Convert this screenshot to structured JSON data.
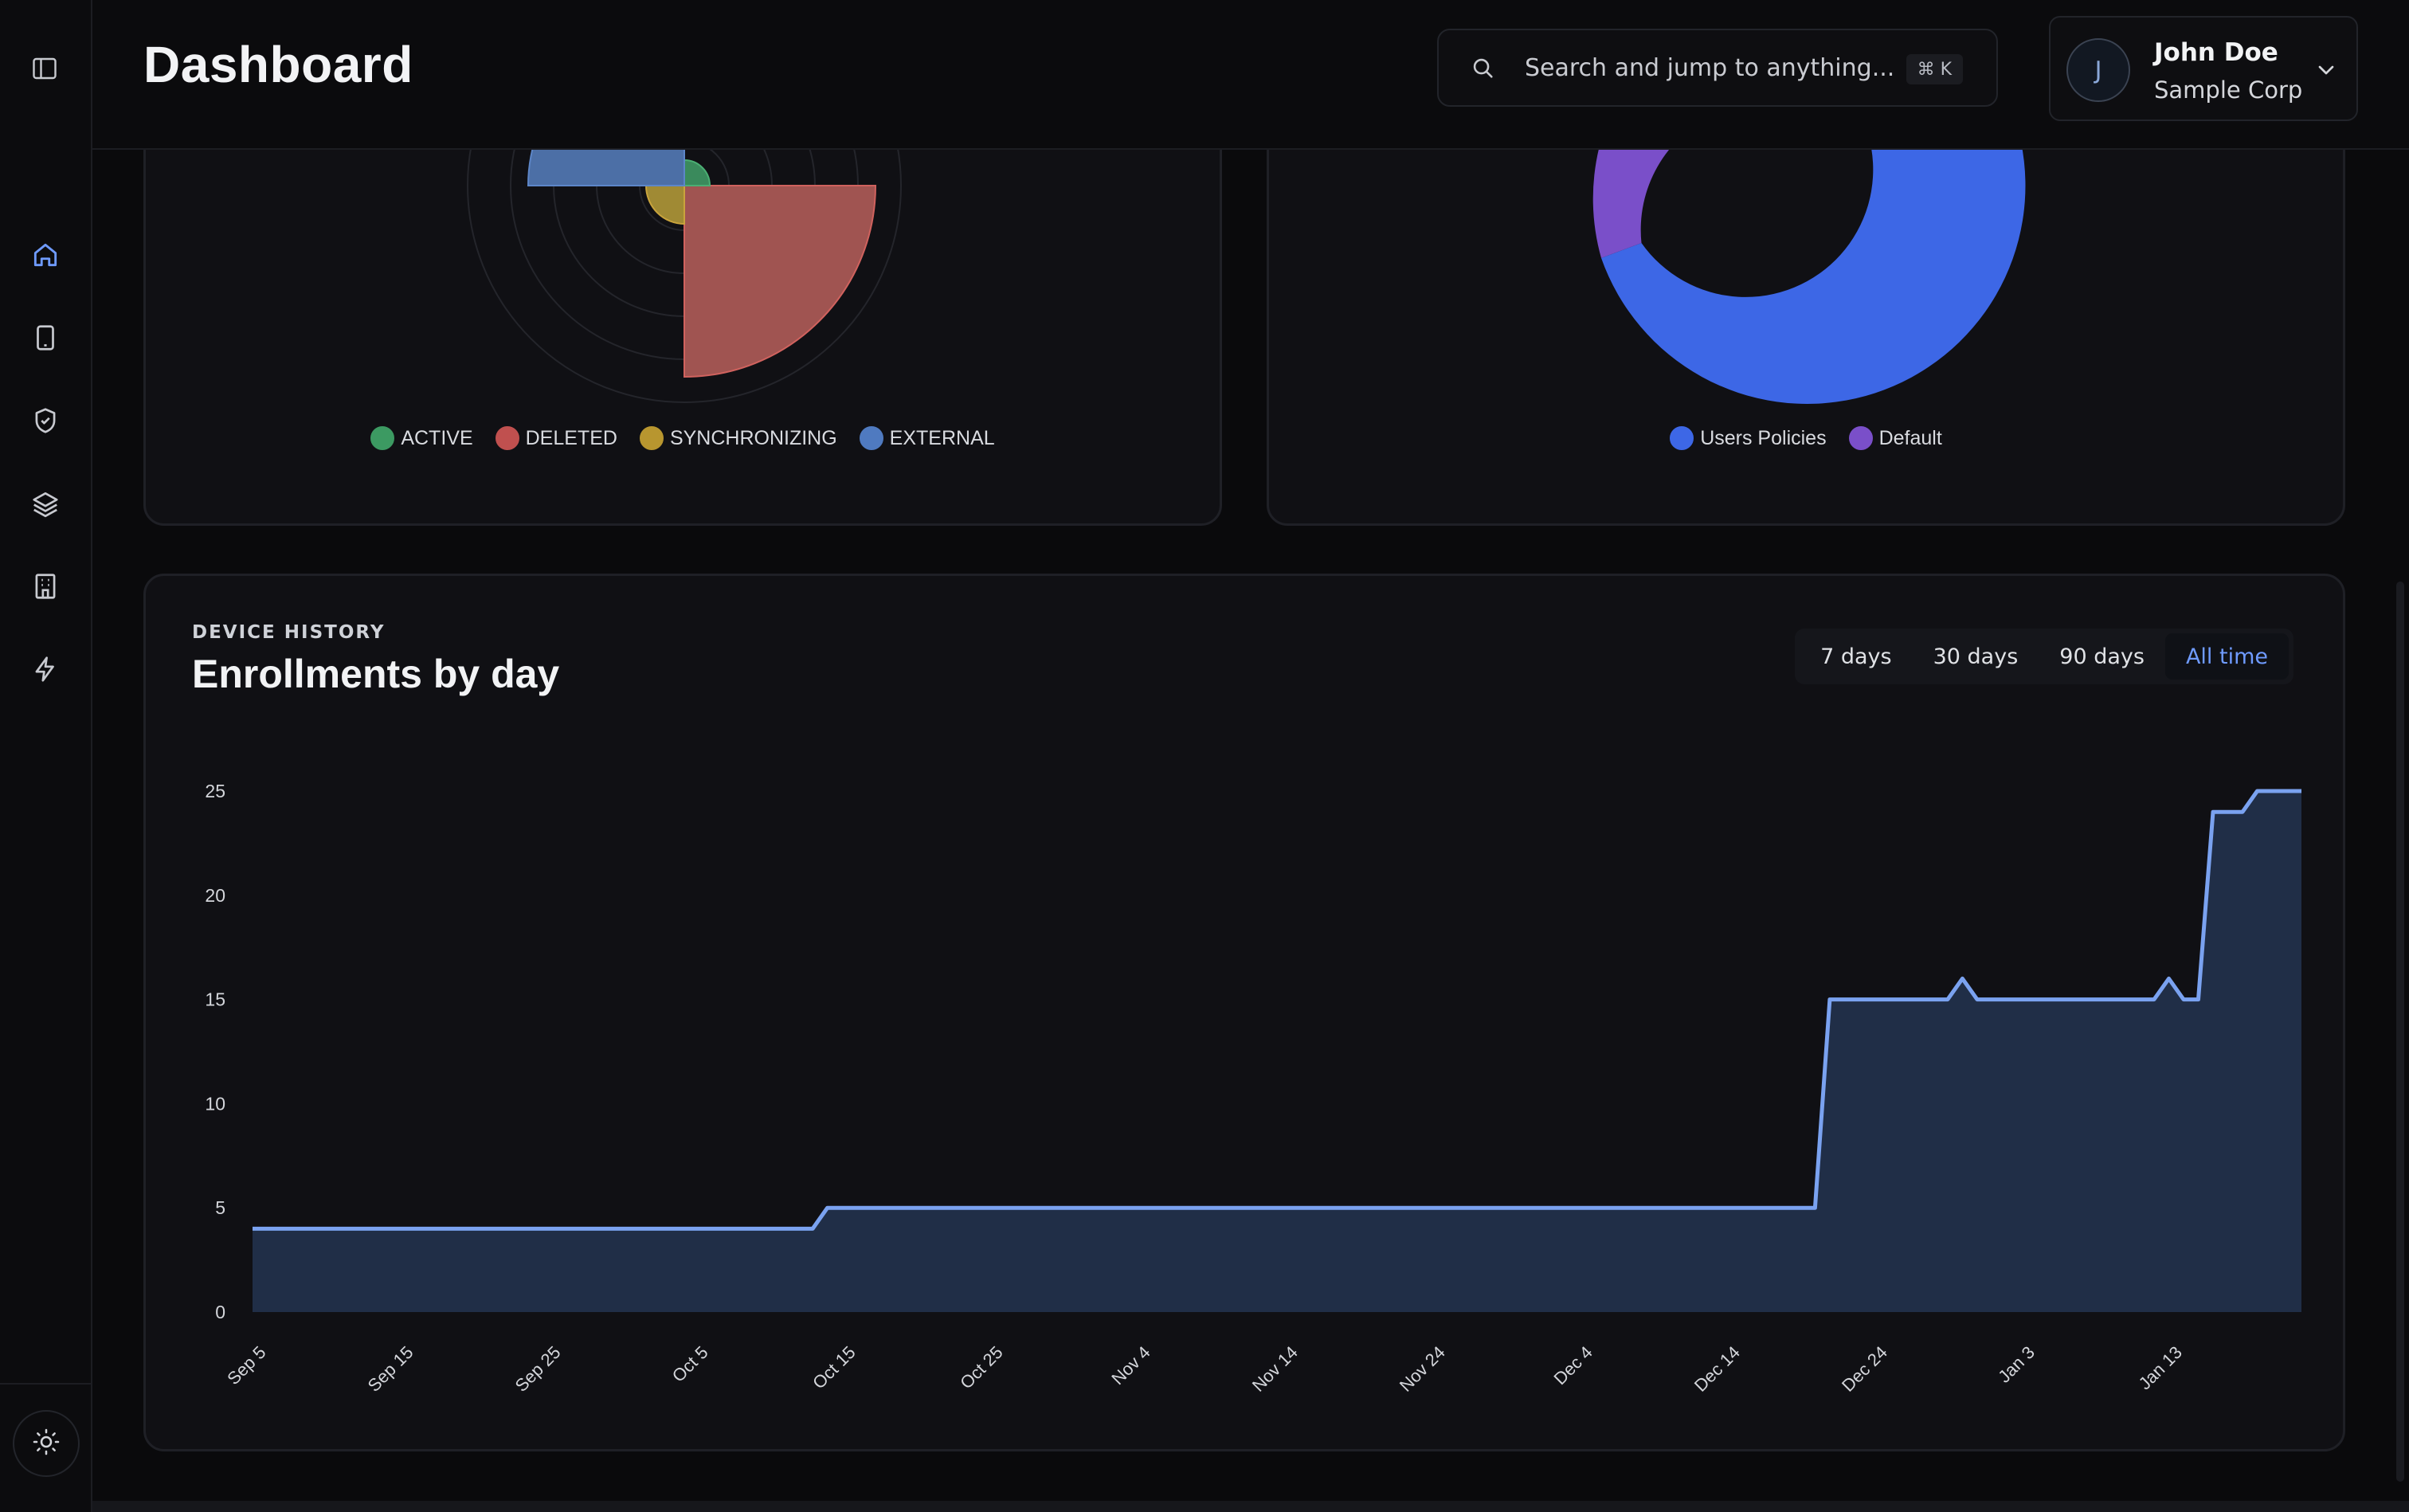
{
  "header": {
    "title": "Dashboard",
    "search_placeholder": "Search and jump to anything...",
    "search_shortcut": "⌘ K"
  },
  "user": {
    "initial": "J",
    "name": "John Doe",
    "org": "Sample Corp"
  },
  "sidebar": {
    "items": [
      {
        "icon": "home-icon",
        "active": true
      },
      {
        "icon": "device-icon",
        "active": false
      },
      {
        "icon": "shield-icon",
        "active": false
      },
      {
        "icon": "layers-icon",
        "active": false
      },
      {
        "icon": "building-icon",
        "active": false
      },
      {
        "icon": "lightning-icon",
        "active": false
      }
    ]
  },
  "status_chart": {
    "legend": [
      {
        "label": "ACTIVE",
        "color": "#3c9a62"
      },
      {
        "label": "DELETED",
        "color": "#c0504f"
      },
      {
        "label": "SYNCHRONIZING",
        "color": "#b8962f"
      },
      {
        "label": "EXTERNAL",
        "color": "#4f7ac0"
      }
    ]
  },
  "policy_chart": {
    "legend": [
      {
        "label": "Users Policies",
        "color": "#3d67e6"
      },
      {
        "label": "Default",
        "color": "#7a4fc9"
      }
    ]
  },
  "history": {
    "eyebrow": "DEVICE HISTORY",
    "title": "Enrollments by day",
    "ranges": [
      "7 days",
      "30 days",
      "90 days",
      "All time"
    ],
    "selected_range": "All time"
  },
  "chart_data": {
    "type": "area",
    "x_start": "Sep 5",
    "x_ticks": [
      "Sep 5",
      "Sep 15",
      "Sep 25",
      "Oct 5",
      "Oct 15",
      "Oct 25",
      "Nov 4",
      "Nov 14",
      "Nov 24",
      "Dec 4",
      "Dec 14",
      "Dec 24",
      "Jan 3",
      "Jan 13"
    ],
    "y_ticks": [
      0,
      5,
      10,
      15,
      20,
      25
    ],
    "ylim": [
      0,
      25
    ],
    "x_range_days": [
      0,
      139
    ],
    "points": [
      [
        0,
        4
      ],
      [
        38,
        4
      ],
      [
        39,
        5
      ],
      [
        106,
        5
      ],
      [
        107,
        15
      ],
      [
        115,
        15
      ],
      [
        116,
        16
      ],
      [
        117,
        15
      ],
      [
        129,
        15
      ],
      [
        130,
        16
      ],
      [
        131,
        15
      ],
      [
        132,
        15
      ],
      [
        133,
        24
      ],
      [
        135,
        24
      ],
      [
        136,
        25
      ],
      [
        139,
        25
      ]
    ],
    "line_color": "#7aa2f0",
    "fill_color": "#22304a",
    "grid": false
  }
}
